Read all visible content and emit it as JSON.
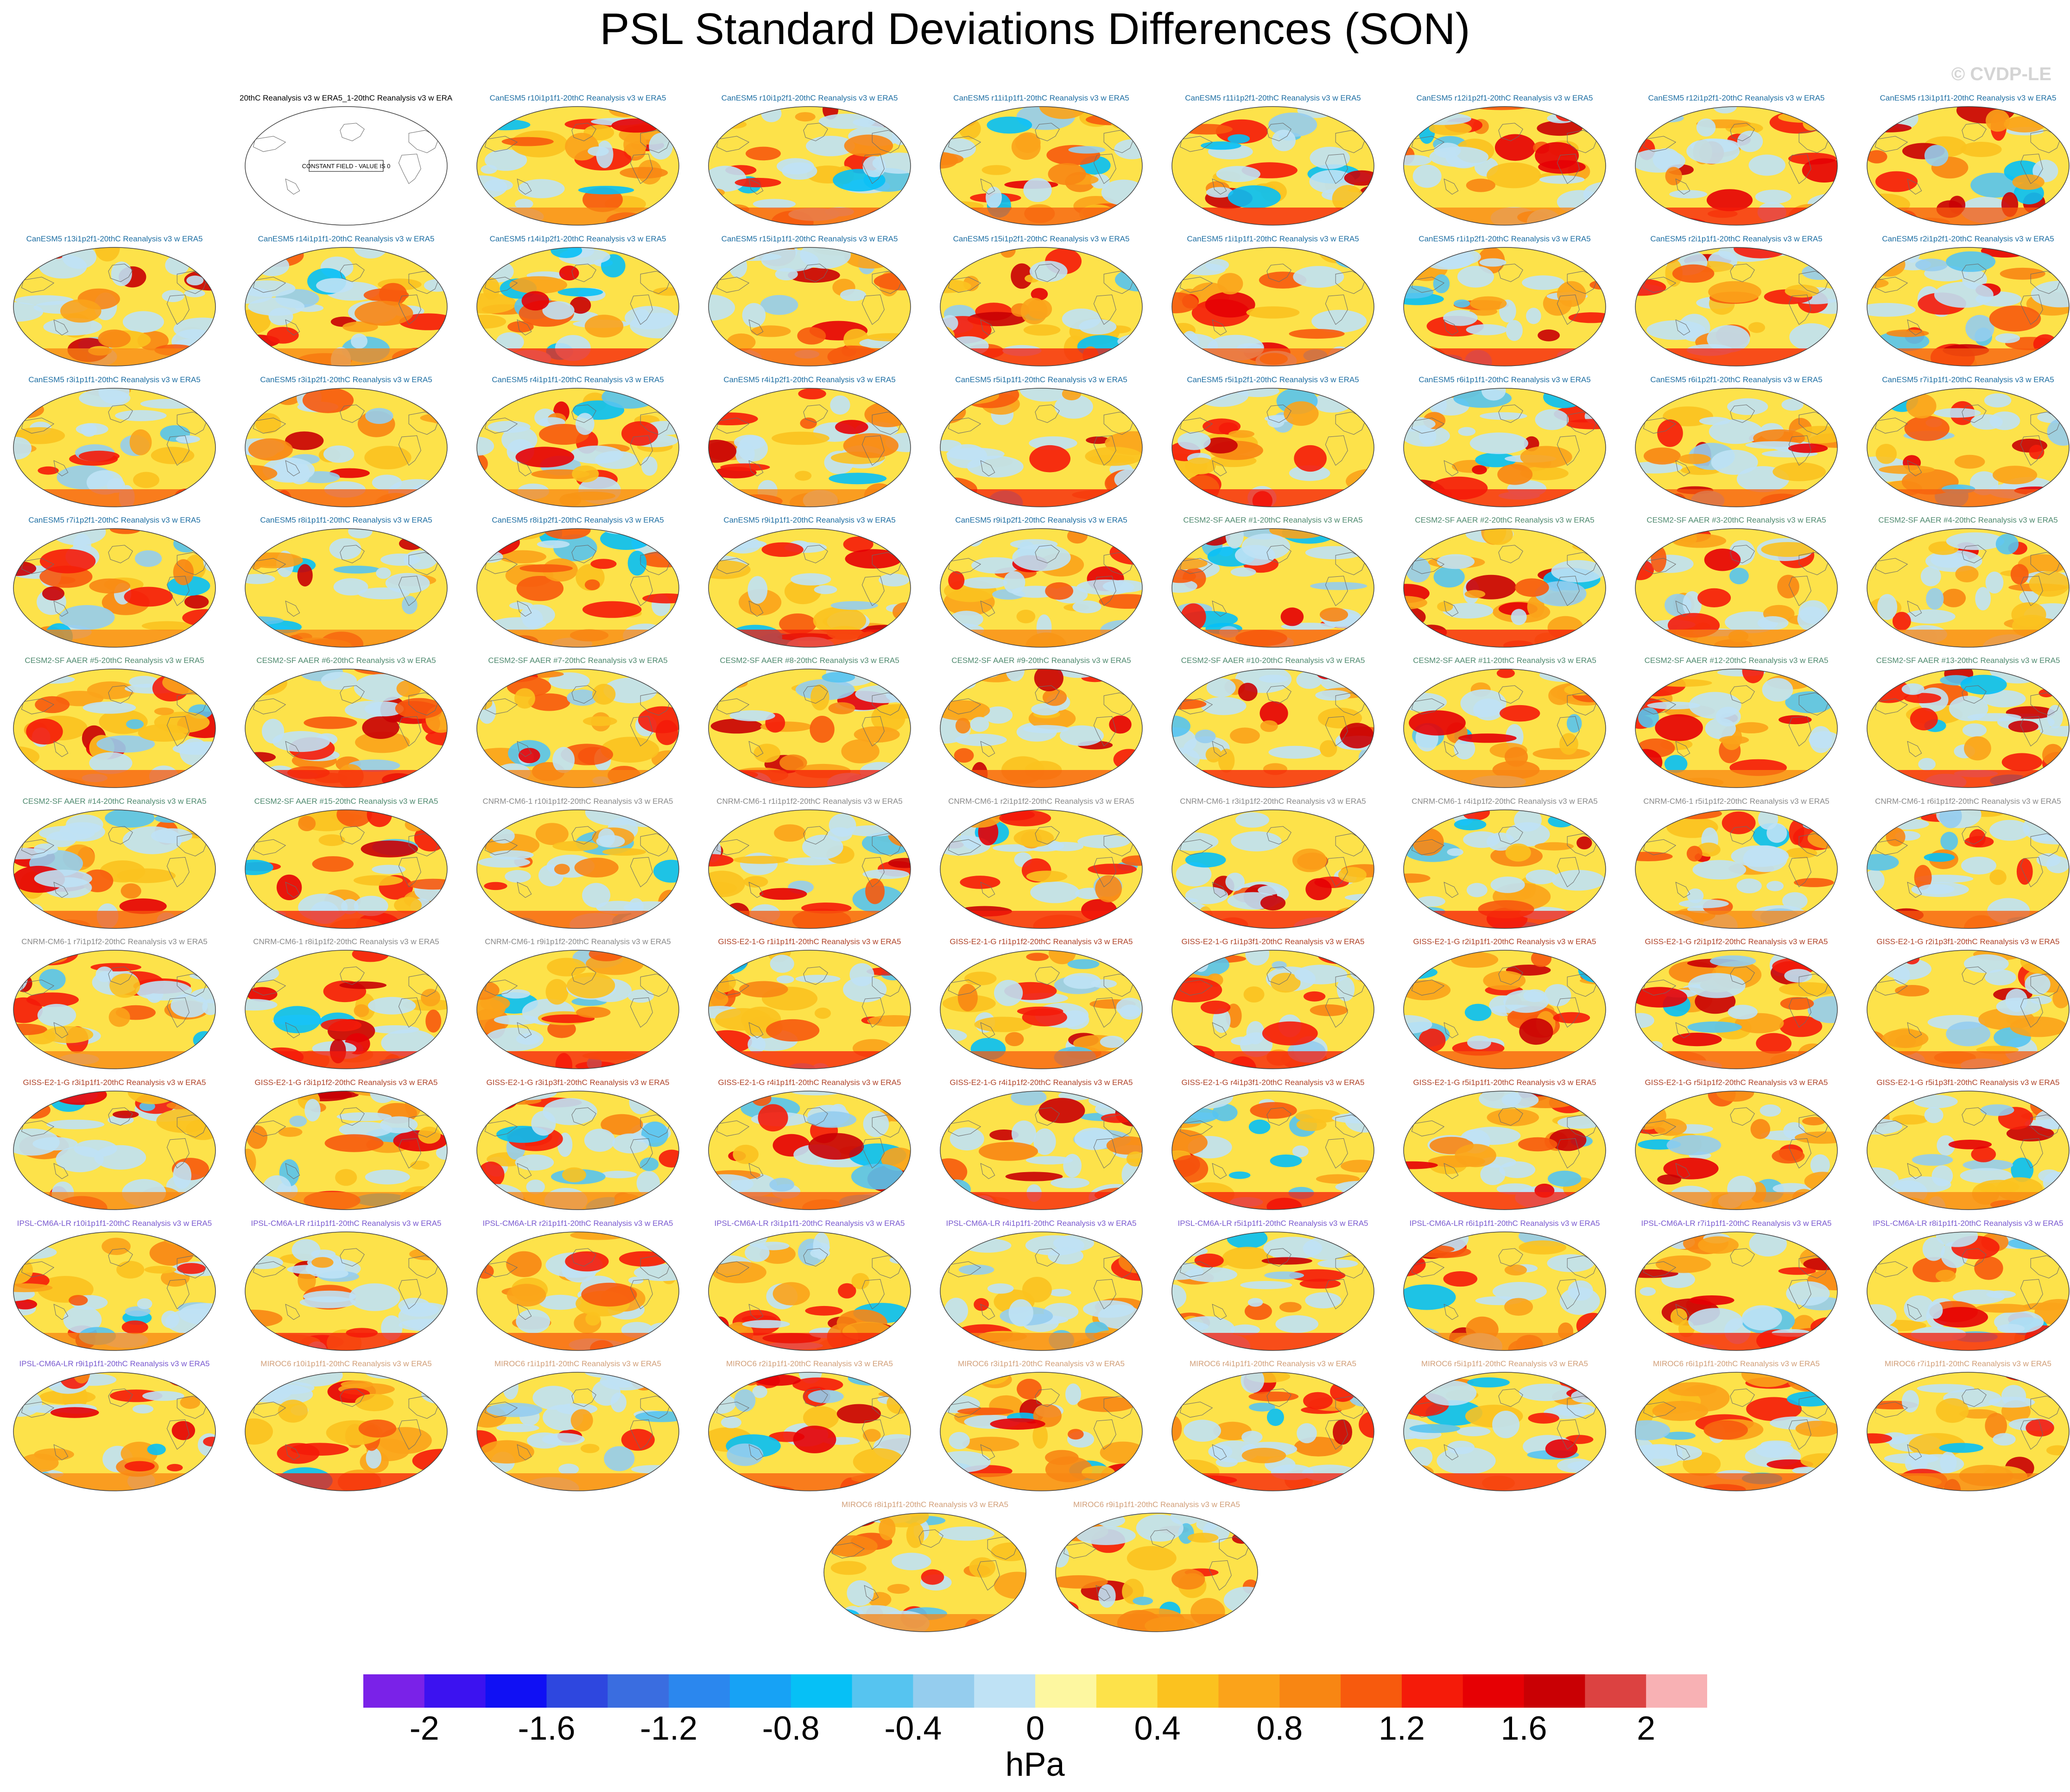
{
  "figure": {
    "title": "PSL Standard Deviations Differences (SON)",
    "watermark": "© CVDP-LE"
  },
  "chart_data": {
    "type": "heatmap",
    "title": "PSL Standard Deviations Differences (SON)",
    "projection": "Robinson global maps",
    "colorbar": {
      "units": "hPa",
      "levels": [
        -2.2,
        -2,
        -1.8,
        -1.6,
        -1.4,
        -1.2,
        -1,
        -0.8,
        -0.6,
        -0.4,
        -0.2,
        0,
        0.2,
        0.4,
        0.6,
        0.8,
        1,
        1.2,
        1.4,
        1.6,
        1.8,
        2,
        2.2
      ],
      "tick_labels": [
        "-2",
        "-1.6",
        "-1.2",
        "-0.8",
        "-0.4",
        "0",
        "0.4",
        "0.8",
        "1.2",
        "1.6",
        "2"
      ],
      "tick_values": [
        -2,
        -1.6,
        -1.2,
        -0.8,
        -0.4,
        0,
        0.4,
        0.8,
        1.2,
        1.6,
        2
      ],
      "colors": [
        "#7a22e8",
        "#3c12f0",
        "#1010f4",
        "#2e47df",
        "#3a6de0",
        "#2b87ee",
        "#17a2f5",
        "#06c0f6",
        "#56c4f0",
        "#95cdee",
        "#bfe2f5",
        "#fdf7a0",
        "#fde24a",
        "#fbc21f",
        "#fba31a",
        "#f88613",
        "#f75a0d",
        "#f51b09",
        "#e60004",
        "#c90004",
        "#dc4241",
        "#f8b1b4"
      ],
      "position": "bottom"
    },
    "panels": [
      {
        "title": "20thC Reanalysis v3 w ERA5_1-20thC Reanalysis v3 w ERA5",
        "group": "obs",
        "constant_field_text": "CONSTANT FIELD - VALUE IS 0"
      },
      {
        "title": "CanESM5 r10i1p1f1-20thC Reanalysis v3 w ERA5",
        "group": "CanESM5"
      },
      {
        "title": "CanESM5 r10i1p2f1-20thC Reanalysis v3 w ERA5",
        "group": "CanESM5"
      },
      {
        "title": "CanESM5 r11i1p1f1-20thC Reanalysis v3 w ERA5",
        "group": "CanESM5"
      },
      {
        "title": "CanESM5 r11i1p2f1-20thC Reanalysis v3 w ERA5",
        "group": "CanESM5"
      },
      {
        "title": "CanESM5 r12i1p2f1-20thC Reanalysis v3 w ERA5",
        "group": "CanESM5"
      },
      {
        "title": "CanESM5 r12i1p2f1-20thC Reanalysis v3 w ERA5",
        "group": "CanESM5"
      },
      {
        "title": "CanESM5 r13i1p1f1-20thC Reanalysis v3 w ERA5",
        "group": "CanESM5"
      },
      {
        "title": "CanESM5 r13i1p2f1-20thC Reanalysis v3 w ERA5",
        "group": "CanESM5"
      },
      {
        "title": "CanESM5 r14i1p1f1-20thC Reanalysis v3 w ERA5",
        "group": "CanESM5"
      },
      {
        "title": "CanESM5 r14i1p2f1-20thC Reanalysis v3 w ERA5",
        "group": "CanESM5"
      },
      {
        "title": "CanESM5 r15i1p1f1-20thC Reanalysis v3 w ERA5",
        "group": "CanESM5"
      },
      {
        "title": "CanESM5 r15i1p2f1-20thC Reanalysis v3 w ERA5",
        "group": "CanESM5"
      },
      {
        "title": "CanESM5 r1i1p1f1-20thC Reanalysis v3 w ERA5",
        "group": "CanESM5"
      },
      {
        "title": "CanESM5 r1i1p2f1-20thC Reanalysis v3 w ERA5",
        "group": "CanESM5"
      },
      {
        "title": "CanESM5 r2i1p1f1-20thC Reanalysis v3 w ERA5",
        "group": "CanESM5"
      },
      {
        "title": "CanESM5 r2i1p2f1-20thC Reanalysis v3 w ERA5",
        "group": "CanESM5"
      },
      {
        "title": "CanESM5 r3i1p1f1-20thC Reanalysis v3 w ERA5",
        "group": "CanESM5"
      },
      {
        "title": "CanESM5 r3i1p2f1-20thC Reanalysis v3 w ERA5",
        "group": "CanESM5"
      },
      {
        "title": "CanESM5 r4i1p1f1-20thC Reanalysis v3 w ERA5",
        "group": "CanESM5"
      },
      {
        "title": "CanESM5 r4i1p2f1-20thC Reanalysis v3 w ERA5",
        "group": "CanESM5"
      },
      {
        "title": "CanESM5 r5i1p1f1-20thC Reanalysis v3 w ERA5",
        "group": "CanESM5"
      },
      {
        "title": "CanESM5 r5i1p2f1-20thC Reanalysis v3 w ERA5",
        "group": "CanESM5"
      },
      {
        "title": "CanESM5 r6i1p1f1-20thC Reanalysis v3 w ERA5",
        "group": "CanESM5"
      },
      {
        "title": "CanESM5 r6i1p2f1-20thC Reanalysis v3 w ERA5",
        "group": "CanESM5"
      },
      {
        "title": "CanESM5 r7i1p1f1-20thC Reanalysis v3 w ERA5",
        "group": "CanESM5"
      },
      {
        "title": "CanESM5 r7i1p2f1-20thC Reanalysis v3 w ERA5",
        "group": "CanESM5"
      },
      {
        "title": "CanESM5 r8i1p1f1-20thC Reanalysis v3 w ERA5",
        "group": "CanESM5"
      },
      {
        "title": "CanESM5 r8i1p2f1-20thC Reanalysis v3 w ERA5",
        "group": "CanESM5"
      },
      {
        "title": "CanESM5 r9i1p1f1-20thC Reanalysis v3 w ERA5",
        "group": "CanESM5"
      },
      {
        "title": "CanESM5 r9i1p2f1-20thC Reanalysis v3 w ERA5",
        "group": "CanESM5"
      },
      {
        "title": "CESM2-SF AAER #1-20thC Reanalysis v3 w ERA5",
        "group": "CESM2"
      },
      {
        "title": "CESM2-SF AAER #2-20thC Reanalysis v3 w ERA5",
        "group": "CESM2"
      },
      {
        "title": "CESM2-SF AAER #3-20thC Reanalysis v3 w ERA5",
        "group": "CESM2"
      },
      {
        "title": "CESM2-SF AAER #4-20thC Reanalysis v3 w ERA5",
        "group": "CESM2"
      },
      {
        "title": "CESM2-SF AAER #5-20thC Reanalysis v3 w ERA5",
        "group": "CESM2"
      },
      {
        "title": "CESM2-SF AAER #6-20thC Reanalysis v3 w ERA5",
        "group": "CESM2"
      },
      {
        "title": "CESM2-SF AAER #7-20thC Reanalysis v3 w ERA5",
        "group": "CESM2"
      },
      {
        "title": "CESM2-SF AAER #8-20thC Reanalysis v3 w ERA5",
        "group": "CESM2"
      },
      {
        "title": "CESM2-SF AAER #9-20thC Reanalysis v3 w ERA5",
        "group": "CESM2"
      },
      {
        "title": "CESM2-SF AAER #10-20thC Reanalysis v3 w ERA5",
        "group": "CESM2"
      },
      {
        "title": "CESM2-SF AAER #11-20thC Reanalysis v3 w ERA5",
        "group": "CESM2"
      },
      {
        "title": "CESM2-SF AAER #12-20thC Reanalysis v3 w ERA5",
        "group": "CESM2"
      },
      {
        "title": "CESM2-SF AAER #13-20thC Reanalysis v3 w ERA5",
        "group": "CESM2"
      },
      {
        "title": "CESM2-SF AAER #14-20thC Reanalysis v3 w ERA5",
        "group": "CESM2"
      },
      {
        "title": "CESM2-SF AAER #15-20thC Reanalysis v3 w ERA5",
        "group": "CESM2"
      },
      {
        "title": "CNRM-CM6-1 r10i1p1f2-20thC Reanalysis v3 w ERA5",
        "group": "CNRM"
      },
      {
        "title": "CNRM-CM6-1 r1i1p1f2-20thC Reanalysis v3 w ERA5",
        "group": "CNRM"
      },
      {
        "title": "CNRM-CM6-1 r2i1p1f2-20thC Reanalysis v3 w ERA5",
        "group": "CNRM"
      },
      {
        "title": "CNRM-CM6-1 r3i1p1f2-20thC Reanalysis v3 w ERA5",
        "group": "CNRM"
      },
      {
        "title": "CNRM-CM6-1 r4i1p1f2-20thC Reanalysis v3 w ERA5",
        "group": "CNRM"
      },
      {
        "title": "CNRM-CM6-1 r5i1p1f2-20thC Reanalysis v3 w ERA5",
        "group": "CNRM"
      },
      {
        "title": "CNRM-CM6-1 r6i1p1f2-20thC Reanalysis v3 w ERA5",
        "group": "CNRM"
      },
      {
        "title": "CNRM-CM6-1 r7i1p1f2-20thC Reanalysis v3 w ERA5",
        "group": "CNRM"
      },
      {
        "title": "CNRM-CM6-1 r8i1p1f2-20thC Reanalysis v3 w ERA5",
        "group": "CNRM"
      },
      {
        "title": "CNRM-CM6-1 r9i1p1f2-20thC Reanalysis v3 w ERA5",
        "group": "CNRM"
      },
      {
        "title": "GISS-E2-1-G r1i1p1f1-20thC Reanalysis v3 w ERA5",
        "group": "GISS"
      },
      {
        "title": "GISS-E2-1-G r1i1p1f2-20thC Reanalysis v3 w ERA5",
        "group": "GISS"
      },
      {
        "title": "GISS-E2-1-G r1i1p3f1-20thC Reanalysis v3 w ERA5",
        "group": "GISS"
      },
      {
        "title": "GISS-E2-1-G r2i1p1f1-20thC Reanalysis v3 w ERA5",
        "group": "GISS"
      },
      {
        "title": "GISS-E2-1-G r2i1p1f2-20thC Reanalysis v3 w ERA5",
        "group": "GISS"
      },
      {
        "title": "GISS-E2-1-G r2i1p3f1-20thC Reanalysis v3 w ERA5",
        "group": "GISS"
      },
      {
        "title": "GISS-E2-1-G r3i1p1f1-20thC Reanalysis v3 w ERA5",
        "group": "GISS"
      },
      {
        "title": "GISS-E2-1-G r3i1p1f2-20thC Reanalysis v3 w ERA5",
        "group": "GISS"
      },
      {
        "title": "GISS-E2-1-G r3i1p3f1-20thC Reanalysis v3 w ERA5",
        "group": "GISS"
      },
      {
        "title": "GISS-E2-1-G r4i1p1f1-20thC Reanalysis v3 w ERA5",
        "group": "GISS"
      },
      {
        "title": "GISS-E2-1-G r4i1p1f2-20thC Reanalysis v3 w ERA5",
        "group": "GISS"
      },
      {
        "title": "GISS-E2-1-G r4i1p3f1-20thC Reanalysis v3 w ERA5",
        "group": "GISS"
      },
      {
        "title": "GISS-E2-1-G r5i1p1f1-20thC Reanalysis v3 w ERA5",
        "group": "GISS"
      },
      {
        "title": "GISS-E2-1-G r5i1p1f2-20thC Reanalysis v3 w ERA5",
        "group": "GISS"
      },
      {
        "title": "GISS-E2-1-G r5i1p3f1-20thC Reanalysis v3 w ERA5",
        "group": "GISS"
      },
      {
        "title": "IPSL-CM6A-LR r10i1p1f1-20thC Reanalysis v3 w ERA5",
        "group": "IPSL"
      },
      {
        "title": "IPSL-CM6A-LR r1i1p1f1-20thC Reanalysis v3 w ERA5",
        "group": "IPSL"
      },
      {
        "title": "IPSL-CM6A-LR r2i1p1f1-20thC Reanalysis v3 w ERA5",
        "group": "IPSL"
      },
      {
        "title": "IPSL-CM6A-LR r3i1p1f1-20thC Reanalysis v3 w ERA5",
        "group": "IPSL"
      },
      {
        "title": "IPSL-CM6A-LR r4i1p1f1-20thC Reanalysis v3 w ERA5",
        "group": "IPSL"
      },
      {
        "title": "IPSL-CM6A-LR r5i1p1f1-20thC Reanalysis v3 w ERA5",
        "group": "IPSL"
      },
      {
        "title": "IPSL-CM6A-LR r6i1p1f1-20thC Reanalysis v3 w ERA5",
        "group": "IPSL"
      },
      {
        "title": "IPSL-CM6A-LR r7i1p1f1-20thC Reanalysis v3 w ERA5",
        "group": "IPSL"
      },
      {
        "title": "IPSL-CM6A-LR r8i1p1f1-20thC Reanalysis v3 w ERA5",
        "group": "IPSL"
      },
      {
        "title": "IPSL-CM6A-LR r9i1p1f1-20thC Reanalysis v3 w ERA5",
        "group": "IPSL"
      },
      {
        "title": "MIROC6 r10i1p1f1-20thC Reanalysis v3 w ERA5",
        "group": "MIROC6"
      },
      {
        "title": "MIROC6 r1i1p1f1-20thC Reanalysis v3 w ERA5",
        "group": "MIROC6"
      },
      {
        "title": "MIROC6 r2i1p1f1-20thC Reanalysis v3 w ERA5",
        "group": "MIROC6"
      },
      {
        "title": "MIROC6 r3i1p1f1-20thC Reanalysis v3 w ERA5",
        "group": "MIROC6"
      },
      {
        "title": "MIROC6 r4i1p1f1-20thC Reanalysis v3 w ERA5",
        "group": "MIROC6"
      },
      {
        "title": "MIROC6 r5i1p1f1-20thC Reanalysis v3 w ERA5",
        "group": "MIROC6"
      },
      {
        "title": "MIROC6 r6i1p1f1-20thC Reanalysis v3 w ERA5",
        "group": "MIROC6"
      },
      {
        "title": "MIROC6 r7i1p1f1-20thC Reanalysis v3 w ERA5",
        "group": "MIROC6"
      },
      {
        "title": "MIROC6 r8i1p1f1-20thC Reanalysis v3 w ERA5",
        "group": "MIROC6"
      },
      {
        "title": "MIROC6 r9i1p1f1-20thC Reanalysis v3 w ERA5",
        "group": "MIROC6"
      }
    ],
    "group_colors": {
      "obs": "#000000",
      "CanESM5": "#1f6fa3",
      "CESM2": "#4f8a6f",
      "CNRM": "#8a8a8a",
      "GISS": "#b0442a",
      "IPSL": "#7a5ad0",
      "MIROC6": "#d2a07a"
    }
  }
}
